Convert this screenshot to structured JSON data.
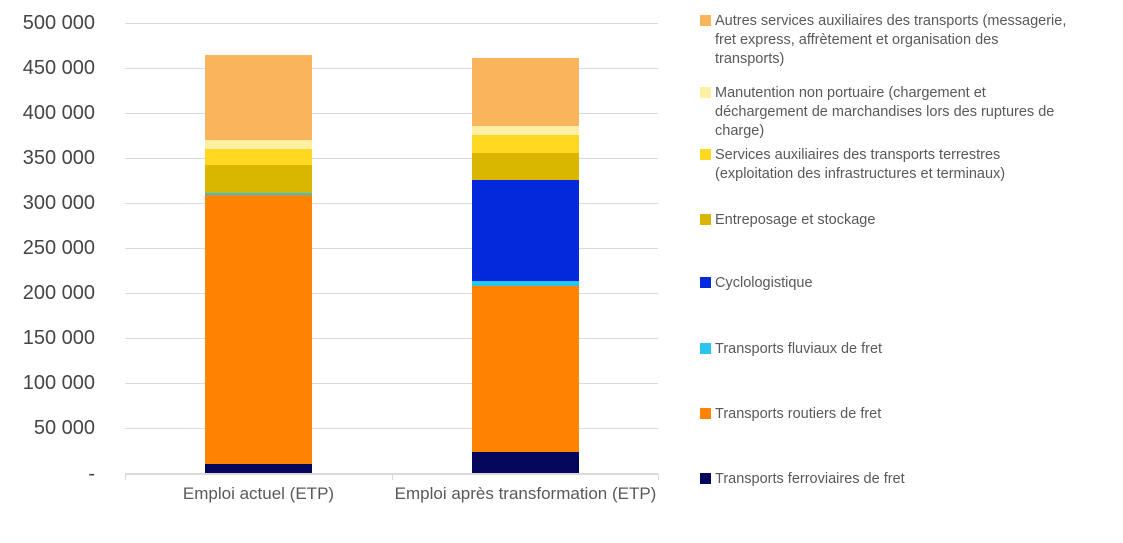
{
  "chart_data": {
    "type": "bar",
    "subtype": "stacked-vertical",
    "title": "",
    "xlabel": "",
    "ylabel": "",
    "categories": [
      "Emploi actuel (ETP)",
      "Emploi après transformation (ETP)"
    ],
    "series": [
      {
        "key": "ferroviaire",
        "name": "Transports ferroviaires de fret",
        "color": "#03065A",
        "values": [
          10000,
          23500
        ]
      },
      {
        "key": "routier",
        "name": "Transports routiers de fret",
        "color": "#FF8300",
        "values": [
          299000,
          185000
        ]
      },
      {
        "key": "fluvial",
        "name": "Transports fluviaux de fret",
        "color": "#2BC4EF",
        "values": [
          2500,
          5000
        ]
      },
      {
        "key": "cyclologistique",
        "name": "Cyclologistique",
        "color": "#0428DC",
        "values": [
          0,
          112500
        ]
      },
      {
        "key": "entreposage",
        "name": "Entreposage et stockage",
        "color": "#D9B600",
        "values": [
          30500,
          29500
        ]
      },
      {
        "key": "services_auxiliaires",
        "name": "Services auxiliaires des transports terrestres (exploitation des infrastructures et terminaux)",
        "color": "#FFD921",
        "values": [
          18000,
          20000
        ]
      },
      {
        "key": "manutention",
        "name": "Manutention non portuaire (chargement et déchargement de marchandises lors des ruptures de charge)",
        "color": "#FFF0A6",
        "values": [
          10500,
          10500
        ]
      },
      {
        "key": "autres",
        "name": "Autres services auxiliaires des transports (messagerie, fret express, affrètement et organisation des transports)",
        "color": "#F9B45C",
        "values": [
          94500,
          75000
        ]
      }
    ],
    "totals": [
      465000,
      461000
    ],
    "ylim": [
      0,
      500000
    ],
    "ytick_step": 50000,
    "ytick_labels": [
      "500 000",
      "450 000",
      "400 000",
      "350 000",
      "300 000",
      "250 000",
      "200 000",
      "150 000",
      "100 000",
      "50 000",
      "-"
    ],
    "grid": true,
    "legend_position": "right",
    "legend_order": [
      "autres",
      "manutention",
      "services_auxiliaires",
      "entreposage",
      "cyclologistique",
      "fluvial",
      "routier",
      "ferroviaire"
    ]
  },
  "colors": {
    "gridline": "#D9D9D9",
    "axis_text": "#454545",
    "label_text": "#595959",
    "background": "#FFFFFF"
  }
}
